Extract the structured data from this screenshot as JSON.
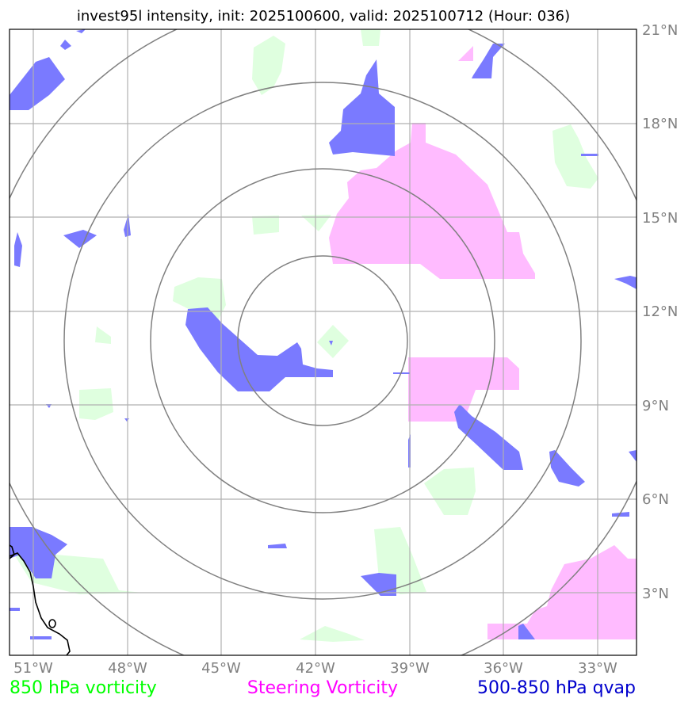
{
  "title": "invest95l intensity, init: 2025100600, valid: 2025100712 (Hour: 036)",
  "lon_labels": [
    "51°W",
    "48°W",
    "45°W",
    "42°W",
    "39°W",
    "36°W",
    "33°W"
  ],
  "lat_labels": [
    "21°N",
    "18°N",
    "15°N",
    "12°N",
    "9°N",
    "6°N",
    "3°N"
  ],
  "legend": [
    {
      "label": "850 hPa vorticity",
      "color": "#00ff00"
    },
    {
      "label": "Steering Vorticity",
      "color": "#ff00ff"
    },
    {
      "label": "500-850 hPa qvap",
      "color": "#0000cd"
    }
  ],
  "colors": {
    "vorticity_fill": "#dfffdf",
    "steering_fill": "#ffbbff",
    "qvap_fill": "#7a7aff",
    "grid": "#b0b0b0",
    "range_rings": "#808080",
    "coastline": "#000000"
  }
}
